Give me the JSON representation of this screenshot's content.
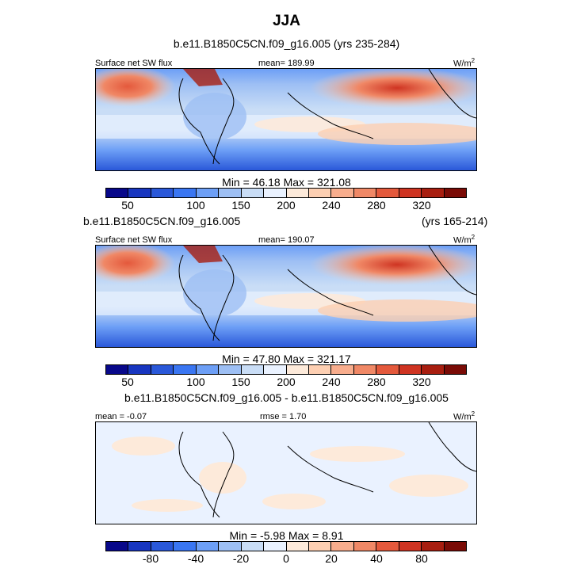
{
  "figure": {
    "title": "JJA",
    "palette": [
      "#08088a",
      "#1836c0",
      "#2a58d9",
      "#3a76f2",
      "#6d9ff6",
      "#9dbff4",
      "#c9ddf6",
      "#eaf2ff",
      "#fdeada",
      "#fdcfb2",
      "#f8ad8d",
      "#f08866",
      "#e4593c",
      "#cf3422",
      "#a81e10",
      "#7a0b06"
    ]
  },
  "panels": [
    {
      "heading": "b.e11.B1850C5CN.f09_g16.005 (yrs 235-284)",
      "left_label": "Surface net SW flux",
      "center_label": "mean= 189.99",
      "units": "W/m",
      "units_sup": "2",
      "stats": "Min =  46.18 Max = 321.08",
      "colorbar_ticks": [
        "50",
        "100",
        "150",
        "200",
        "240",
        "280",
        "320"
      ]
    },
    {
      "heading_left": "b.e11.B1850C5CN.f09_g16.005",
      "heading_right": "(yrs 165-214)",
      "left_label": "Surface net SW flux",
      "center_label": "mean= 190.07",
      "units": "W/m",
      "units_sup": "2",
      "stats": "Min =  47.80 Max = 321.17",
      "colorbar_ticks": [
        "50",
        "100",
        "150",
        "200",
        "240",
        "280",
        "320"
      ]
    },
    {
      "heading": "b.e11.B1850C5CN.f09_g16.005 - b.e11.B1850C5CN.f09_g16.005",
      "left_label": "mean =  -0.07",
      "center_label": "rmse =  1.70",
      "units": "W/m",
      "units_sup": "2",
      "stats": "Min =  -5.98 Max =  8.91",
      "colorbar_ticks": [
        "-80",
        "-40",
        "-20",
        "0",
        "20",
        "40",
        "80"
      ]
    }
  ]
}
